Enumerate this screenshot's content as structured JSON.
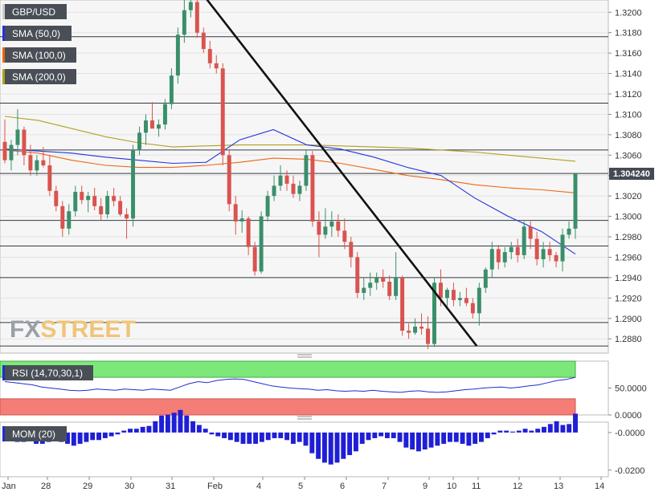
{
  "chart_data": {
    "type": "candlestick",
    "symbol": "GBP/USD",
    "current_price": "1.304240",
    "indicator_labels": [
      "SMA (50,0)",
      "SMA (100,0)",
      "SMA (200,0)"
    ],
    "indicator_colors": [
      "#2233dd",
      "#ee6611",
      "#b0a020"
    ],
    "up_color": "#3a8f6a",
    "down_color": "#d9534f",
    "watermark": {
      "fx": "FX",
      "street": "STREET"
    },
    "x_labels": [
      "Jan",
      "28",
      "29",
      "30",
      "31",
      "Feb",
      "4",
      "5",
      "6",
      "7",
      "9",
      "10",
      "11",
      "12",
      "13",
      "14"
    ],
    "y_ticks": [
      "1.3200",
      "1.3180",
      "1.3160",
      "1.3140",
      "1.3120",
      "1.3100",
      "1.3080",
      "1.3060",
      "1.3040",
      "1.3020",
      "1.3000",
      "1.2980",
      "1.2960",
      "1.2940",
      "1.2920",
      "1.2900",
      "1.2880"
    ],
    "y_range": [
      1.2866,
      1.3212
    ],
    "horizontal_levels": [
      1.3176,
      1.3111,
      1.3065,
      1.3042,
      1.2996,
      1.2971,
      1.294,
      1.2896,
      1.2873
    ],
    "trendline": {
      "from": [
        0.0,
        1.3218
      ],
      "to": [
        0.46,
        1.2873
      ]
    },
    "candles": [
      [
        1.3073,
        1.3095,
        1.3052,
        1.3055
      ],
      [
        1.3055,
        1.3075,
        1.3045,
        1.307
      ],
      [
        1.307,
        1.3105,
        1.306,
        1.3085
      ],
      [
        1.3085,
        1.3088,
        1.305,
        1.306
      ],
      [
        1.306,
        1.307,
        1.304,
        1.3045
      ],
      [
        1.3045,
        1.306,
        1.304,
        1.3055
      ],
      [
        1.3055,
        1.3068,
        1.3048,
        1.305
      ],
      [
        1.305,
        1.306,
        1.302,
        1.3025
      ],
      [
        1.3025,
        1.303,
        1.3005,
        1.301
      ],
      [
        1.301,
        1.3015,
        1.298,
        1.2988
      ],
      [
        1.2988,
        1.3012,
        1.2982,
        1.3005
      ],
      [
        1.3005,
        1.303,
        1.3,
        1.3024
      ],
      [
        1.3024,
        1.303,
        1.3012,
        1.3016
      ],
      [
        1.3016,
        1.3024,
        1.3004,
        1.302
      ],
      [
        1.302,
        1.3028,
        1.3006,
        1.301
      ],
      [
        1.301,
        1.3018,
        1.2996,
        1.3002
      ],
      [
        1.3002,
        1.3025,
        1.2998,
        1.302
      ],
      [
        1.302,
        1.3028,
        1.301,
        1.3015
      ],
      [
        1.3015,
        1.302,
        1.3,
        1.3002
      ],
      [
        1.3002,
        1.3008,
        1.2978,
        1.2998
      ],
      [
        1.2998,
        1.307,
        1.299,
        1.3065
      ],
      [
        1.3065,
        1.3088,
        1.306,
        1.3082
      ],
      [
        1.3082,
        1.31,
        1.307,
        1.3094
      ],
      [
        1.3094,
        1.3112,
        1.3088,
        1.3086
      ],
      [
        1.3086,
        1.3095,
        1.3078,
        1.309
      ],
      [
        1.309,
        1.3115,
        1.3085,
        1.311
      ],
      [
        1.311,
        1.3145,
        1.3105,
        1.3138
      ],
      [
        1.3138,
        1.3185,
        1.313,
        1.3178
      ],
      [
        1.3178,
        1.3215,
        1.317,
        1.3202
      ],
      [
        1.3202,
        1.3218,
        1.3195,
        1.321
      ],
      [
        1.321,
        1.3214,
        1.3175,
        1.318
      ],
      [
        1.318,
        1.3185,
        1.316,
        1.3164
      ],
      [
        1.3164,
        1.3172,
        1.3145,
        1.315
      ],
      [
        1.315,
        1.3158,
        1.314,
        1.3145
      ],
      [
        1.3145,
        1.315,
        1.305,
        1.306
      ],
      [
        1.306,
        1.3066,
        1.3005,
        1.3012
      ],
      [
        1.3012,
        1.302,
        1.2982,
        1.2995
      ],
      [
        1.2995,
        1.3006,
        1.2984,
        1.2998
      ],
      [
        1.2998,
        1.3,
        1.2962,
        1.297
      ],
      [
        1.297,
        1.2975,
        1.2942,
        1.2946
      ],
      [
        1.2946,
        1.3005,
        1.2944,
        1.3
      ],
      [
        1.3,
        1.3025,
        1.2995,
        1.302
      ],
      [
        1.302,
        1.304,
        1.3015,
        1.303
      ],
      [
        1.303,
        1.305,
        1.3025,
        1.304
      ],
      [
        1.304,
        1.3045,
        1.3025,
        1.3032
      ],
      [
        1.3032,
        1.304,
        1.3018,
        1.3022
      ],
      [
        1.3022,
        1.3035,
        1.3015,
        1.303
      ],
      [
        1.303,
        1.3065,
        1.3025,
        1.306
      ],
      [
        1.306,
        1.3064,
        1.299,
        1.2995
      ],
      [
        1.2995,
        1.3005,
        1.296,
        1.2982
      ],
      [
        1.2982,
        1.3008,
        1.2978,
        1.299
      ],
      [
        1.299,
        1.3005,
        1.298,
        1.2995
      ],
      [
        1.2995,
        1.3002,
        1.298,
        1.2986
      ],
      [
        1.2986,
        1.2998,
        1.2968,
        1.2975
      ],
      [
        1.2975,
        1.298,
        1.295,
        1.296
      ],
      [
        1.296,
        1.2965,
        1.292,
        1.2925
      ],
      [
        1.2925,
        1.294,
        1.2918,
        1.293
      ],
      [
        1.293,
        1.2945,
        1.2922,
        1.2935
      ],
      [
        1.2935,
        1.2945,
        1.2928,
        1.294
      ],
      [
        1.294,
        1.2948,
        1.293,
        1.2936
      ],
      [
        1.2936,
        1.2942,
        1.2918,
        1.2922
      ],
      [
        1.2922,
        1.2965,
        1.2918,
        1.294
      ],
      [
        1.294,
        1.2942,
        1.2883,
        1.2888
      ],
      [
        1.2888,
        1.2895,
        1.288,
        1.2886
      ],
      [
        1.2886,
        1.29,
        1.2884,
        1.2892
      ],
      [
        1.2892,
        1.2905,
        1.2884,
        1.289
      ],
      [
        1.289,
        1.2902,
        1.287,
        1.2875
      ],
      [
        1.2875,
        1.294,
        1.2872,
        1.2935
      ],
      [
        1.2935,
        1.2948,
        1.2912,
        1.292
      ],
      [
        1.292,
        1.293,
        1.2912,
        1.2928
      ],
      [
        1.2928,
        1.2935,
        1.2912,
        1.2918
      ],
      [
        1.2918,
        1.2926,
        1.2912,
        1.292
      ],
      [
        1.292,
        1.293,
        1.2912,
        1.2915
      ],
      [
        1.2915,
        1.292,
        1.29,
        1.2905
      ],
      [
        1.2905,
        1.2935,
        1.2893,
        1.293
      ],
      [
        1.293,
        1.295,
        1.2925,
        1.2948
      ],
      [
        1.2948,
        1.2975,
        1.294,
        1.2968
      ],
      [
        1.2968,
        1.2972,
        1.2948,
        1.2955
      ],
      [
        1.2955,
        1.297,
        1.295,
        1.2965
      ],
      [
        1.2965,
        1.2975,
        1.2958,
        1.297
      ],
      [
        1.297,
        1.2978,
        1.2955,
        1.2962
      ],
      [
        1.2962,
        1.2995,
        1.2958,
        1.299
      ],
      [
        1.299,
        1.2995,
        1.2968,
        1.2978
      ],
      [
        1.2978,
        1.2985,
        1.2952,
        1.2958
      ],
      [
        1.2958,
        1.2975,
        1.295,
        1.2968
      ],
      [
        1.2968,
        1.2975,
        1.2956,
        1.2962
      ],
      [
        1.2962,
        1.2965,
        1.295,
        1.2956
      ],
      [
        1.2956,
        1.2988,
        1.2946,
        1.2982
      ],
      [
        1.2982,
        1.2995,
        1.2978,
        1.2988
      ],
      [
        1.2988,
        1.3042,
        1.2978,
        1.3042
      ]
    ],
    "sma50": [
      1.3066,
      1.3064,
      1.3062,
      1.3058,
      1.3055,
      1.3052,
      1.3053,
      1.3075,
      1.3085,
      1.307,
      1.3066,
      1.3058,
      1.3048,
      1.304,
      1.3018,
      1.3,
      1.2985,
      1.2963
    ],
    "sma100": [
      1.3065,
      1.3062,
      1.3055,
      1.305,
      1.3048,
      1.3048,
      1.305,
      1.3053,
      1.3057,
      1.3056,
      1.3052,
      1.3046,
      1.304,
      1.3036,
      1.3031,
      1.3028,
      1.3026,
      1.3023
    ],
    "sma200": [
      1.3098,
      1.3094,
      1.3086,
      1.3078,
      1.3072,
      1.3068,
      1.3069,
      1.307,
      1.307,
      1.307,
      1.3069,
      1.3068,
      1.3067,
      1.3065,
      1.3063,
      1.306,
      1.3057,
      1.3054
    ],
    "rsi": {
      "label": "RSI (14,70,30,1)",
      "ticks": [
        "50.0000",
        "0.0000"
      ],
      "range": [
        0,
        100
      ],
      "overbought": 70,
      "oversold": 30,
      "values": [
        62,
        60,
        58,
        56,
        52,
        50,
        48,
        46,
        45,
        46,
        48,
        47,
        46,
        48,
        47,
        46,
        48,
        47,
        46,
        52,
        58,
        62,
        60,
        64,
        66,
        67,
        66,
        62,
        58,
        54,
        52,
        50,
        49,
        48,
        46,
        47,
        45,
        44,
        45,
        44,
        46,
        44,
        43,
        42,
        44,
        45,
        43,
        42,
        43,
        45,
        47,
        48,
        50,
        51,
        52,
        50,
        52,
        54,
        56,
        60,
        64,
        66,
        70
      ]
    },
    "momentum": {
      "label": "MOM (20)",
      "ticks": [
        "-0.0000",
        "-0.0200"
      ],
      "range": [
        -0.0235,
        0.0055
      ],
      "values": [
        -0.003,
        -0.004,
        -0.005,
        -0.005,
        -0.004,
        -0.006,
        -0.006,
        -0.005,
        -0.004,
        -0.005,
        -0.006,
        -0.007,
        -0.006,
        -0.005,
        -0.004,
        -0.004,
        -0.003,
        -0.002,
        -0.001,
        0.001,
        0.002,
        0.002,
        0.003,
        0.0035,
        0.006,
        0.009,
        0.0095,
        0.0105,
        0.012,
        0.009,
        0.006,
        0.004,
        0.002,
        -0.001,
        -0.002,
        -0.003,
        -0.004,
        -0.005,
        -0.006,
        -0.006,
        -0.006,
        -0.005,
        -0.004,
        -0.003,
        -0.003,
        -0.004,
        -0.006,
        -0.005,
        -0.007,
        -0.011,
        -0.014,
        -0.016,
        -0.017,
        -0.016,
        -0.014,
        -0.012,
        -0.01,
        -0.006,
        -0.004,
        -0.003,
        -0.002,
        -0.003,
        -0.003,
        -0.005,
        -0.008,
        -0.009,
        -0.01,
        -0.009,
        -0.008,
        -0.007,
        -0.006,
        -0.005,
        -0.005,
        -0.006,
        -0.007,
        -0.006,
        -0.005,
        -0.003,
        -0.001,
        0.001,
        0.001,
        0.0005,
        0.001,
        0.002,
        0.001,
        0.002,
        0.003,
        0.0045,
        0.006,
        0.004,
        0.0045,
        0.01
      ]
    }
  }
}
